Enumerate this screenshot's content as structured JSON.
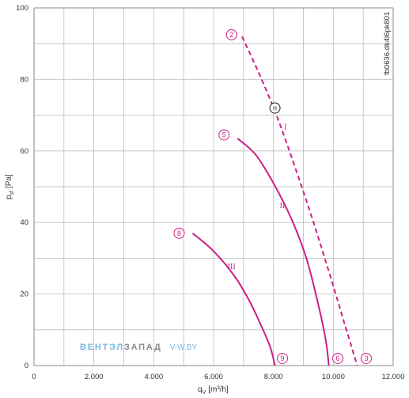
{
  "chart_data": {
    "type": "line",
    "xlabel": "q",
    "xlabel_sub": "V",
    "xlabel_unit": "[m³/h]",
    "ylabel": "p",
    "ylabel_sub": "sf",
    "ylabel_unit": "[Pa]",
    "xlim": [
      0,
      12000
    ],
    "ylim": [
      0,
      100
    ],
    "x_ticks": [
      0,
      2000,
      4000,
      6000,
      8000,
      10000,
      12000
    ],
    "x_tick_labels": [
      "0",
      "2.000",
      "4.000",
      "6.000",
      "8.000",
      "10.000",
      "12.000"
    ],
    "y_ticks": [
      0,
      20,
      40,
      60,
      80,
      100
    ],
    "y_tick_labels": [
      "0",
      "20",
      "40",
      "60",
      "80",
      "100"
    ],
    "grid": true,
    "code_label": "fb0636.dk4l6pk801",
    "series": [
      {
        "name": "I",
        "style": "dashed",
        "color": "#cc1f86",
        "points": [
          [
            6950,
            92
          ],
          [
            7500,
            82
          ],
          [
            8100,
            70
          ],
          [
            8700,
            56
          ],
          [
            9300,
            41
          ],
          [
            9900,
            25
          ],
          [
            10400,
            11
          ],
          [
            10800,
            0
          ]
        ],
        "start_marker": "2",
        "end_marker": "3",
        "label_point": [
          8400,
          66
        ]
      },
      {
        "name": "II",
        "style": "solid",
        "color": "#cc1f86",
        "points": [
          [
            6800,
            63.5
          ],
          [
            7400,
            59
          ],
          [
            8000,
            51
          ],
          [
            8600,
            41
          ],
          [
            9100,
            30
          ],
          [
            9500,
            17
          ],
          [
            9750,
            7
          ],
          [
            9850,
            0
          ]
        ],
        "start_marker": "5",
        "end_marker": "6",
        "label_point": [
          8300,
          44
        ]
      },
      {
        "name": "III",
        "style": "solid",
        "color": "#cc1f86",
        "points": [
          [
            5300,
            37
          ],
          [
            6000,
            32
          ],
          [
            6700,
            25
          ],
          [
            7200,
            18
          ],
          [
            7600,
            11
          ],
          [
            7900,
            5
          ],
          [
            8050,
            0
          ]
        ],
        "start_marker": "8",
        "end_marker": "9",
        "label_point": [
          6600,
          27
        ]
      }
    ],
    "markers": [
      {
        "label": "2",
        "x": 6600,
        "y": 92.5
      },
      {
        "label": "5",
        "x": 6350,
        "y": 64.5
      },
      {
        "label": "8",
        "x": 4850,
        "y": 37
      },
      {
        "label": "9",
        "x": 8300,
        "y": 2
      },
      {
        "label": "6",
        "x": 10150,
        "y": 2
      },
      {
        "label": "3",
        "x": 11100,
        "y": 2
      }
    ],
    "operating_point": {
      "label": "n",
      "x": 8050,
      "y": 72
    }
  },
  "watermark": {
    "part1": "ВЕНТЭЛ",
    "part2": "ЗАПАД",
    "part3": "V-W.BY"
  }
}
